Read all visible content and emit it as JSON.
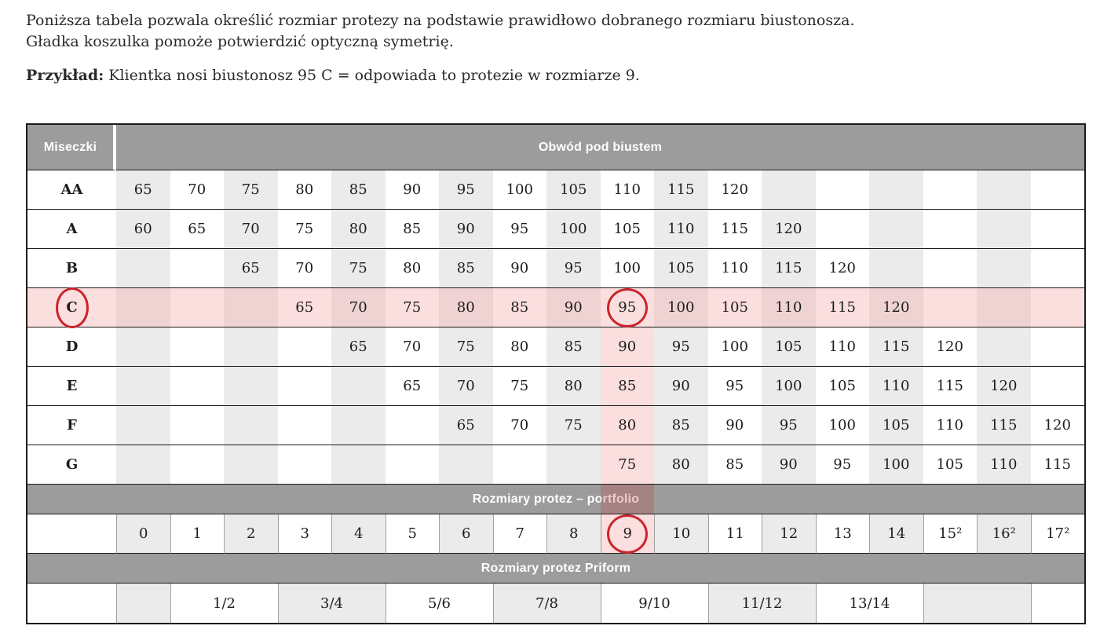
{
  "intro": {
    "line1": "Poniższa tabela pozwala określić rozmiar protezy na podstawie prawidłowo dobranego rozmiaru biustonosza.",
    "line2": "Gładka koszulka pomoże potwierdzić optyczną symetrię.",
    "example_label": "Przykład:",
    "example_text": " Klientka nosi biustonosz 95 C = odpowiada to protezie w rozmiarze 9."
  },
  "table": {
    "cups_header": "Miseczki",
    "underbust_header": "Obwód pod biustem",
    "cup_rows": [
      {
        "label": "AA",
        "values": [
          "65",
          "70",
          "75",
          "80",
          "85",
          "90",
          "95",
          "100",
          "105",
          "110",
          "115",
          "120",
          "",
          "",
          "",
          "",
          "",
          ""
        ]
      },
      {
        "label": "A",
        "values": [
          "60",
          "65",
          "70",
          "75",
          "80",
          "85",
          "90",
          "95",
          "100",
          "105",
          "110",
          "115",
          "120",
          "",
          "",
          "",
          "",
          ""
        ]
      },
      {
        "label": "B",
        "values": [
          "",
          "",
          "65",
          "70",
          "75",
          "80",
          "85",
          "90",
          "95",
          "100",
          "105",
          "110",
          "115",
          "120",
          "",
          "",
          "",
          ""
        ]
      },
      {
        "label": "C",
        "values": [
          "",
          "",
          "",
          "65",
          "70",
          "75",
          "80",
          "85",
          "90",
          "95",
          "100",
          "105",
          "110",
          "115",
          "120",
          "",
          "",
          ""
        ]
      },
      {
        "label": "D",
        "values": [
          "",
          "",
          "",
          "",
          "65",
          "70",
          "75",
          "80",
          "85",
          "90",
          "95",
          "100",
          "105",
          "110",
          "115",
          "120",
          "",
          ""
        ]
      },
      {
        "label": "E",
        "values": [
          "",
          "",
          "",
          "",
          "",
          "65",
          "70",
          "75",
          "80",
          "85",
          "90",
          "95",
          "100",
          "105",
          "110",
          "115",
          "120",
          ""
        ]
      },
      {
        "label": "F",
        "values": [
          "",
          "",
          "",
          "",
          "",
          "",
          "65",
          "70",
          "75",
          "80",
          "85",
          "90",
          "95",
          "100",
          "105",
          "110",
          "115",
          "120"
        ]
      },
      {
        "label": "G",
        "values": [
          "",
          "",
          "",
          "",
          "",
          "",
          "",
          "",
          "",
          "75",
          "80",
          "85",
          "90",
          "95",
          "100",
          "105",
          "110",
          "115"
        ]
      }
    ],
    "portfolio_band": "Rozmiary protez – portfolio",
    "portfolio_sizes": [
      "0",
      "1",
      "2",
      "3",
      "4",
      "5",
      "6",
      "7",
      "8",
      "9",
      "10",
      "11",
      "12",
      "13",
      "14",
      "15²",
      "16²",
      "17²"
    ],
    "priform_band": "Rozmiary protez Priform",
    "priform_cells": [
      {
        "label": "",
        "span": 1,
        "shaded": true
      },
      {
        "label": "1/2",
        "span": 2,
        "shaded": false
      },
      {
        "label": "3/4",
        "span": 2,
        "shaded": true
      },
      {
        "label": "5/6",
        "span": 2,
        "shaded": false
      },
      {
        "label": "7/8",
        "span": 2,
        "shaded": true
      },
      {
        "label": "9/10",
        "span": 2,
        "shaded": false
      },
      {
        "label": "11/12",
        "span": 2,
        "shaded": true
      },
      {
        "label": "13/14",
        "span": 2,
        "shaded": false
      },
      {
        "label": "",
        "span": 2,
        "shaded": true
      },
      {
        "label": "",
        "span": 1,
        "shaded": false
      }
    ]
  },
  "highlight": {
    "highlighted_cup_row": "C",
    "highlighted_row_index": 3,
    "highlighted_column_index": 9,
    "circled": {
      "cup_label": "C",
      "cup_cell_value": "95",
      "portfolio_size": "9"
    }
  },
  "colors": {
    "band_gray": "#9c9c9c",
    "shade_gray": "#ebebeb",
    "highlight_pink": "#fbdede",
    "highlight_pink_shaded": "#efd2d2",
    "circle_red": "#c9252c",
    "border_dark": "#1b1b1b"
  }
}
